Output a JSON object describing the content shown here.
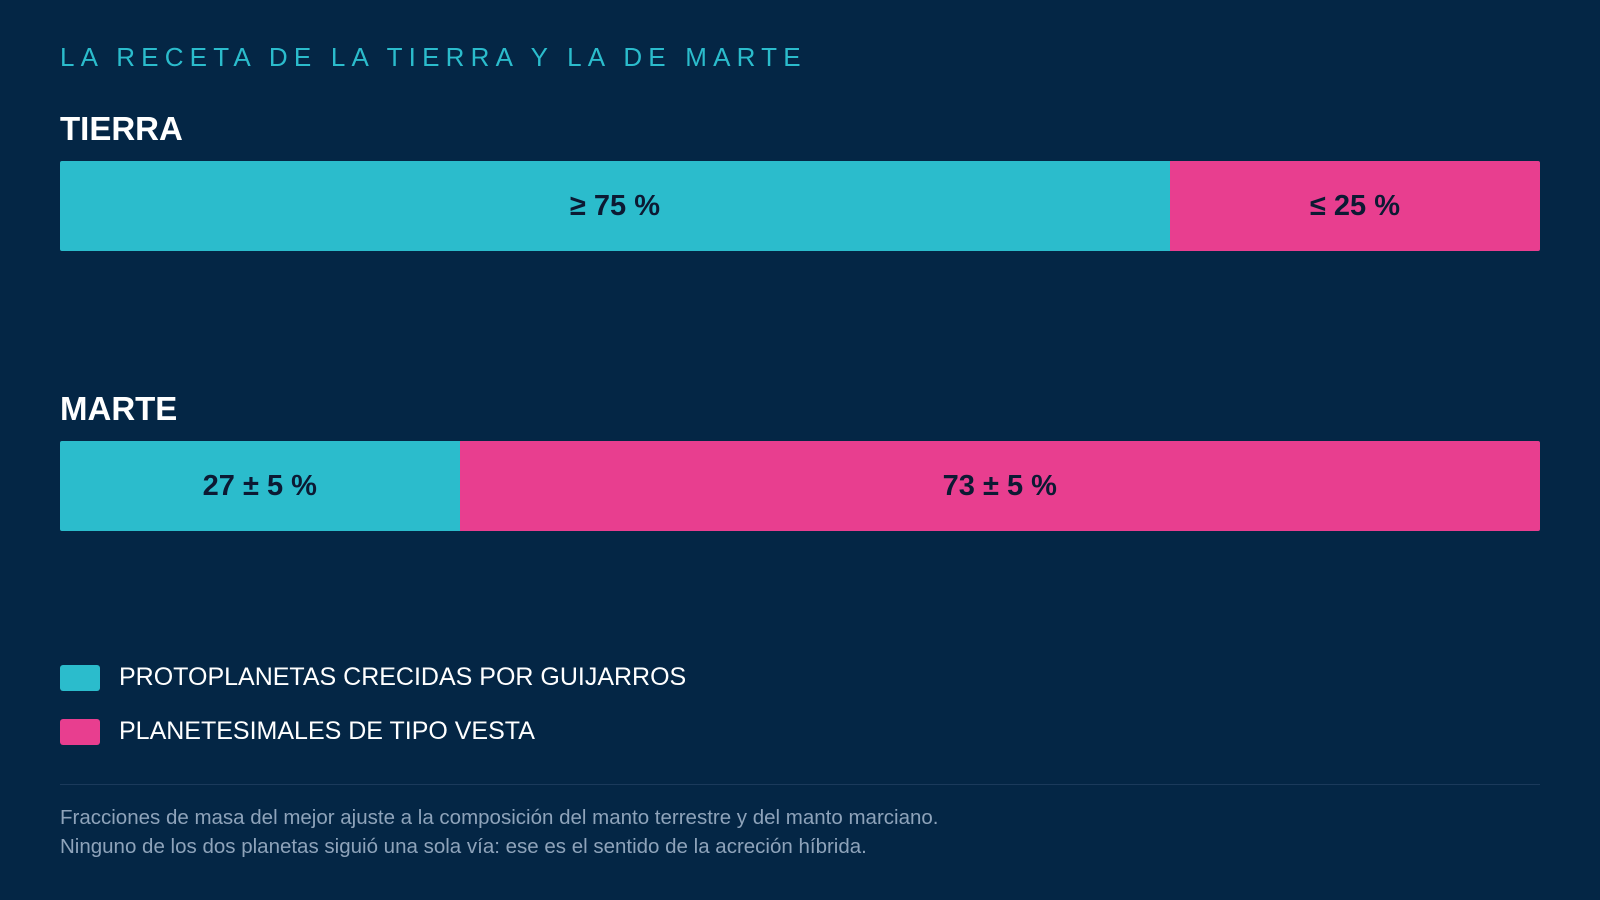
{
  "colors": {
    "background": "#042645",
    "accent": "#2bbccc",
    "pebble": "#2bbccc",
    "vesta": "#e83e8f"
  },
  "kicker": "LA RECETA DE LA TIERRA Y LA DE MARTE",
  "legend": [
    {
      "label": "PROTOPLANETAS CRECIDAS POR GUIJARROS",
      "color": "#2bbccc"
    },
    {
      "label": "PLANETESIMALES DE TIPO VESTA",
      "color": "#e83e8f"
    }
  ],
  "notes": {
    "line1": "Fracciones de masa del mejor ajuste a la composición del manto terrestre y del manto marciano.",
    "line2": "Ninguno de los dos planetas siguió una sola vía: ese es el sentido de la acreción híbrida."
  },
  "chart_data": {
    "type": "bar",
    "orientation": "horizontal",
    "stacked": true,
    "categories": [
      "TIERRA",
      "MARTE"
    ],
    "series": [
      {
        "name": "PROTOPLANETAS CRECIDAS POR GUIJARROS",
        "color": "#2bbccc",
        "values": [
          75,
          27
        ],
        "labels": [
          "≥ 75 %",
          "27 ± 5 %"
        ]
      },
      {
        "name": "PLANETESIMALES DE TIPO VESTA",
        "color": "#e83e8f",
        "values": [
          25,
          73
        ],
        "labels": [
          "≤ 25 %",
          "73 ± 5 %"
        ]
      }
    ],
    "xlim": [
      0,
      100
    ],
    "grid": false
  }
}
